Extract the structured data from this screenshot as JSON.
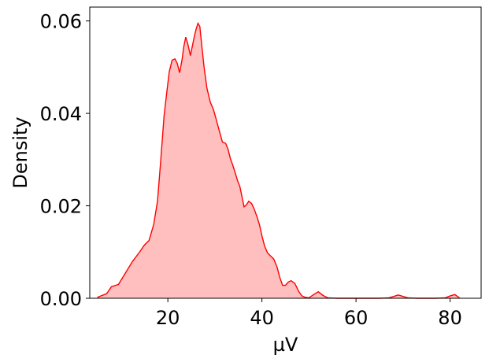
{
  "chart_data": {
    "type": "area",
    "title": "",
    "xlabel": "µV",
    "ylabel": "Density",
    "xlim": [
      3.4,
      86.6
    ],
    "ylim": [
      0,
      0.063
    ],
    "x_ticks": [
      20,
      40,
      60,
      80
    ],
    "x_tick_labels": [
      "20",
      "40",
      "60",
      "80"
    ],
    "y_ticks": [
      0.0,
      0.02,
      0.04,
      0.06
    ],
    "y_tick_labels": [
      "0.00",
      "0.02",
      "0.04",
      "0.06"
    ],
    "grid": false,
    "legend": "none",
    "color": "#ff0000",
    "fill_color": "#ffbfbf",
    "series": [
      {
        "x": [
          5,
          7,
          8,
          9.5,
          11,
          12.5,
          14,
          15,
          16,
          17,
          17.8,
          18.5,
          19.2,
          19.8,
          20.3,
          20.9,
          21.5,
          22,
          22.5,
          23,
          23.4,
          23.8,
          24.2,
          24.8,
          25.2,
          25.6,
          26,
          26.4,
          26.8,
          27.2,
          27.7,
          28.3,
          29,
          29.7,
          30.2,
          30.6,
          31,
          31.6,
          32.3,
          32.8,
          33.3,
          33.8,
          34.3,
          34.8,
          35.3,
          35.8,
          36.2,
          36.7,
          37.2,
          37.8,
          38.4,
          39,
          39.5,
          40,
          40.6,
          41.2,
          41.8,
          42.5,
          43.2,
          43.8,
          44.4,
          45,
          45.6,
          46.2,
          47,
          47.8,
          48.5,
          49.2,
          50,
          51,
          52,
          53,
          54,
          56,
          60,
          65,
          67,
          68,
          69,
          70,
          71,
          73,
          77,
          79,
          80,
          81,
          82
        ],
        "y": [
          0.0002,
          0.001,
          0.0025,
          0.003,
          0.0055,
          0.008,
          0.01,
          0.0115,
          0.0125,
          0.016,
          0.021,
          0.03,
          0.0395,
          0.0448,
          0.049,
          0.0515,
          0.0518,
          0.0508,
          0.0488,
          0.0515,
          0.0545,
          0.0565,
          0.0552,
          0.0525,
          0.0545,
          0.0565,
          0.0582,
          0.0595,
          0.0588,
          0.0548,
          0.05,
          0.0455,
          0.0425,
          0.0408,
          0.039,
          0.0375,
          0.036,
          0.0338,
          0.0335,
          0.0322,
          0.0302,
          0.0288,
          0.0272,
          0.0255,
          0.0242,
          0.0218,
          0.0198,
          0.0202,
          0.021,
          0.0205,
          0.0192,
          0.0175,
          0.0158,
          0.0135,
          0.0112,
          0.0098,
          0.0092,
          0.0085,
          0.0068,
          0.0045,
          0.0028,
          0.0028,
          0.0035,
          0.0038,
          0.0032,
          0.0015,
          0.0005,
          0.0002,
          0.0001,
          0.0008,
          0.0014,
          0.0006,
          0.0001,
          0.0,
          0.0,
          0.0,
          0.0001,
          0.0004,
          0.0007,
          0.0004,
          0.0001,
          0.0,
          0.0,
          0.0001,
          0.0005,
          0.0008,
          0.0001
        ]
      }
    ]
  }
}
